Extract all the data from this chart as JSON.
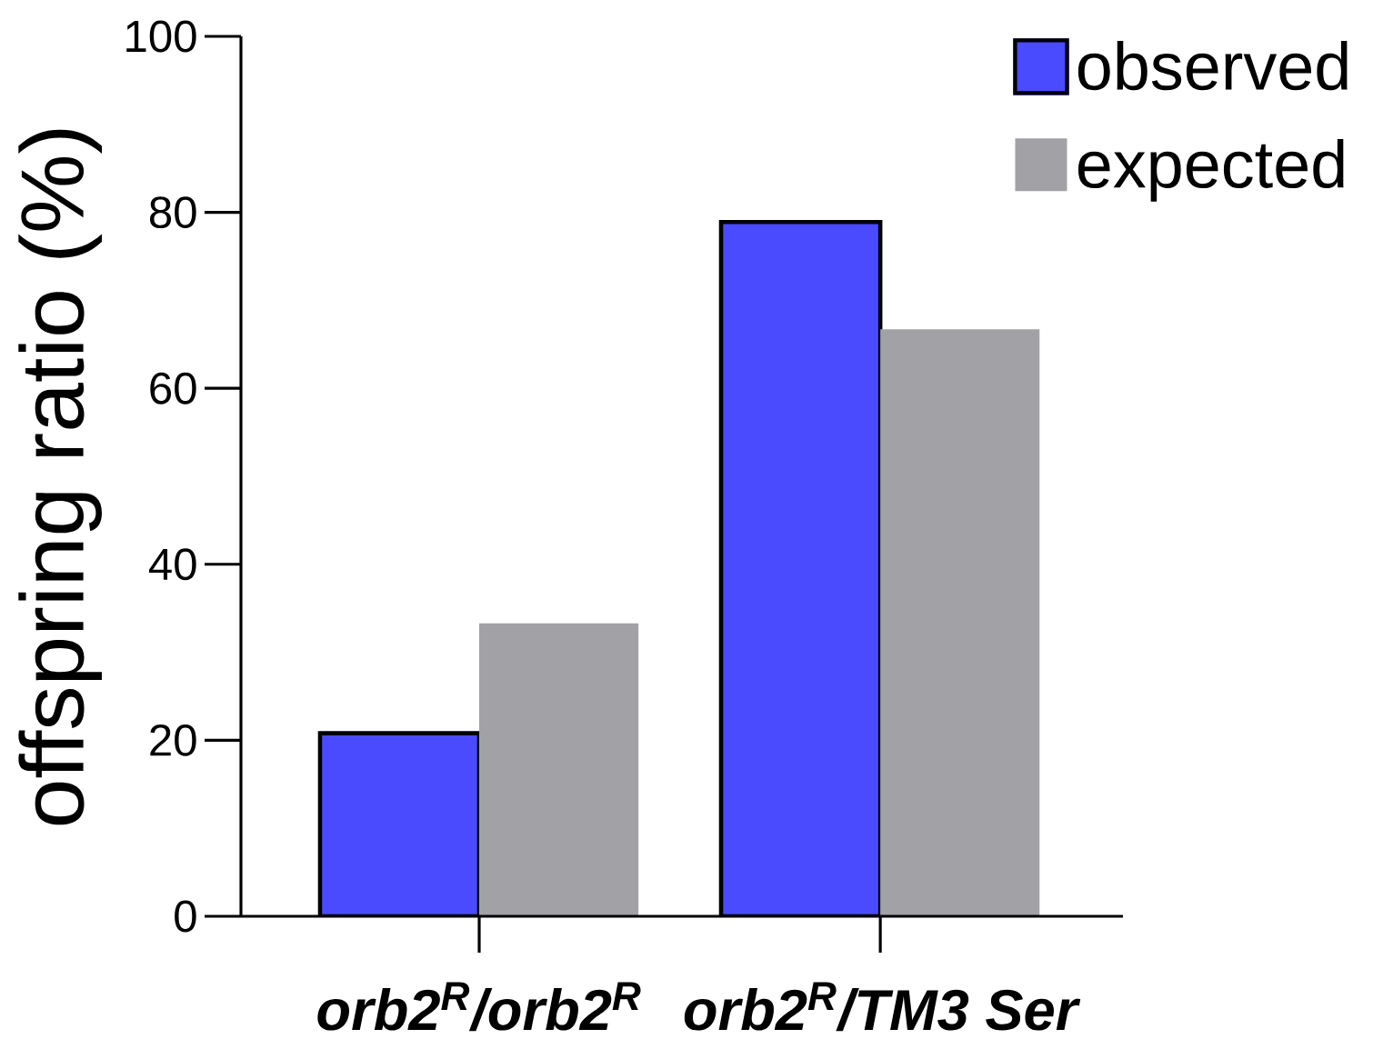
{
  "chart_data": {
    "type": "bar",
    "categories": [
      "orb2$^{R}$/orb2$^{R}$",
      "orb2$^{R}$/TM3 Ser"
    ],
    "series": [
      {
        "name": "observed",
        "color": "#4a4aff",
        "values": [
          20.8,
          78.9
        ]
      },
      {
        "name": "expected",
        "color": "#a2a1a6",
        "values": [
          33.3,
          66.7
        ]
      }
    ],
    "ylabel": "offspring ratio (%)",
    "ylim": [
      0,
      100
    ],
    "yticks": [
      0,
      20,
      40,
      60,
      80,
      100
    ],
    "legend": "top right"
  }
}
